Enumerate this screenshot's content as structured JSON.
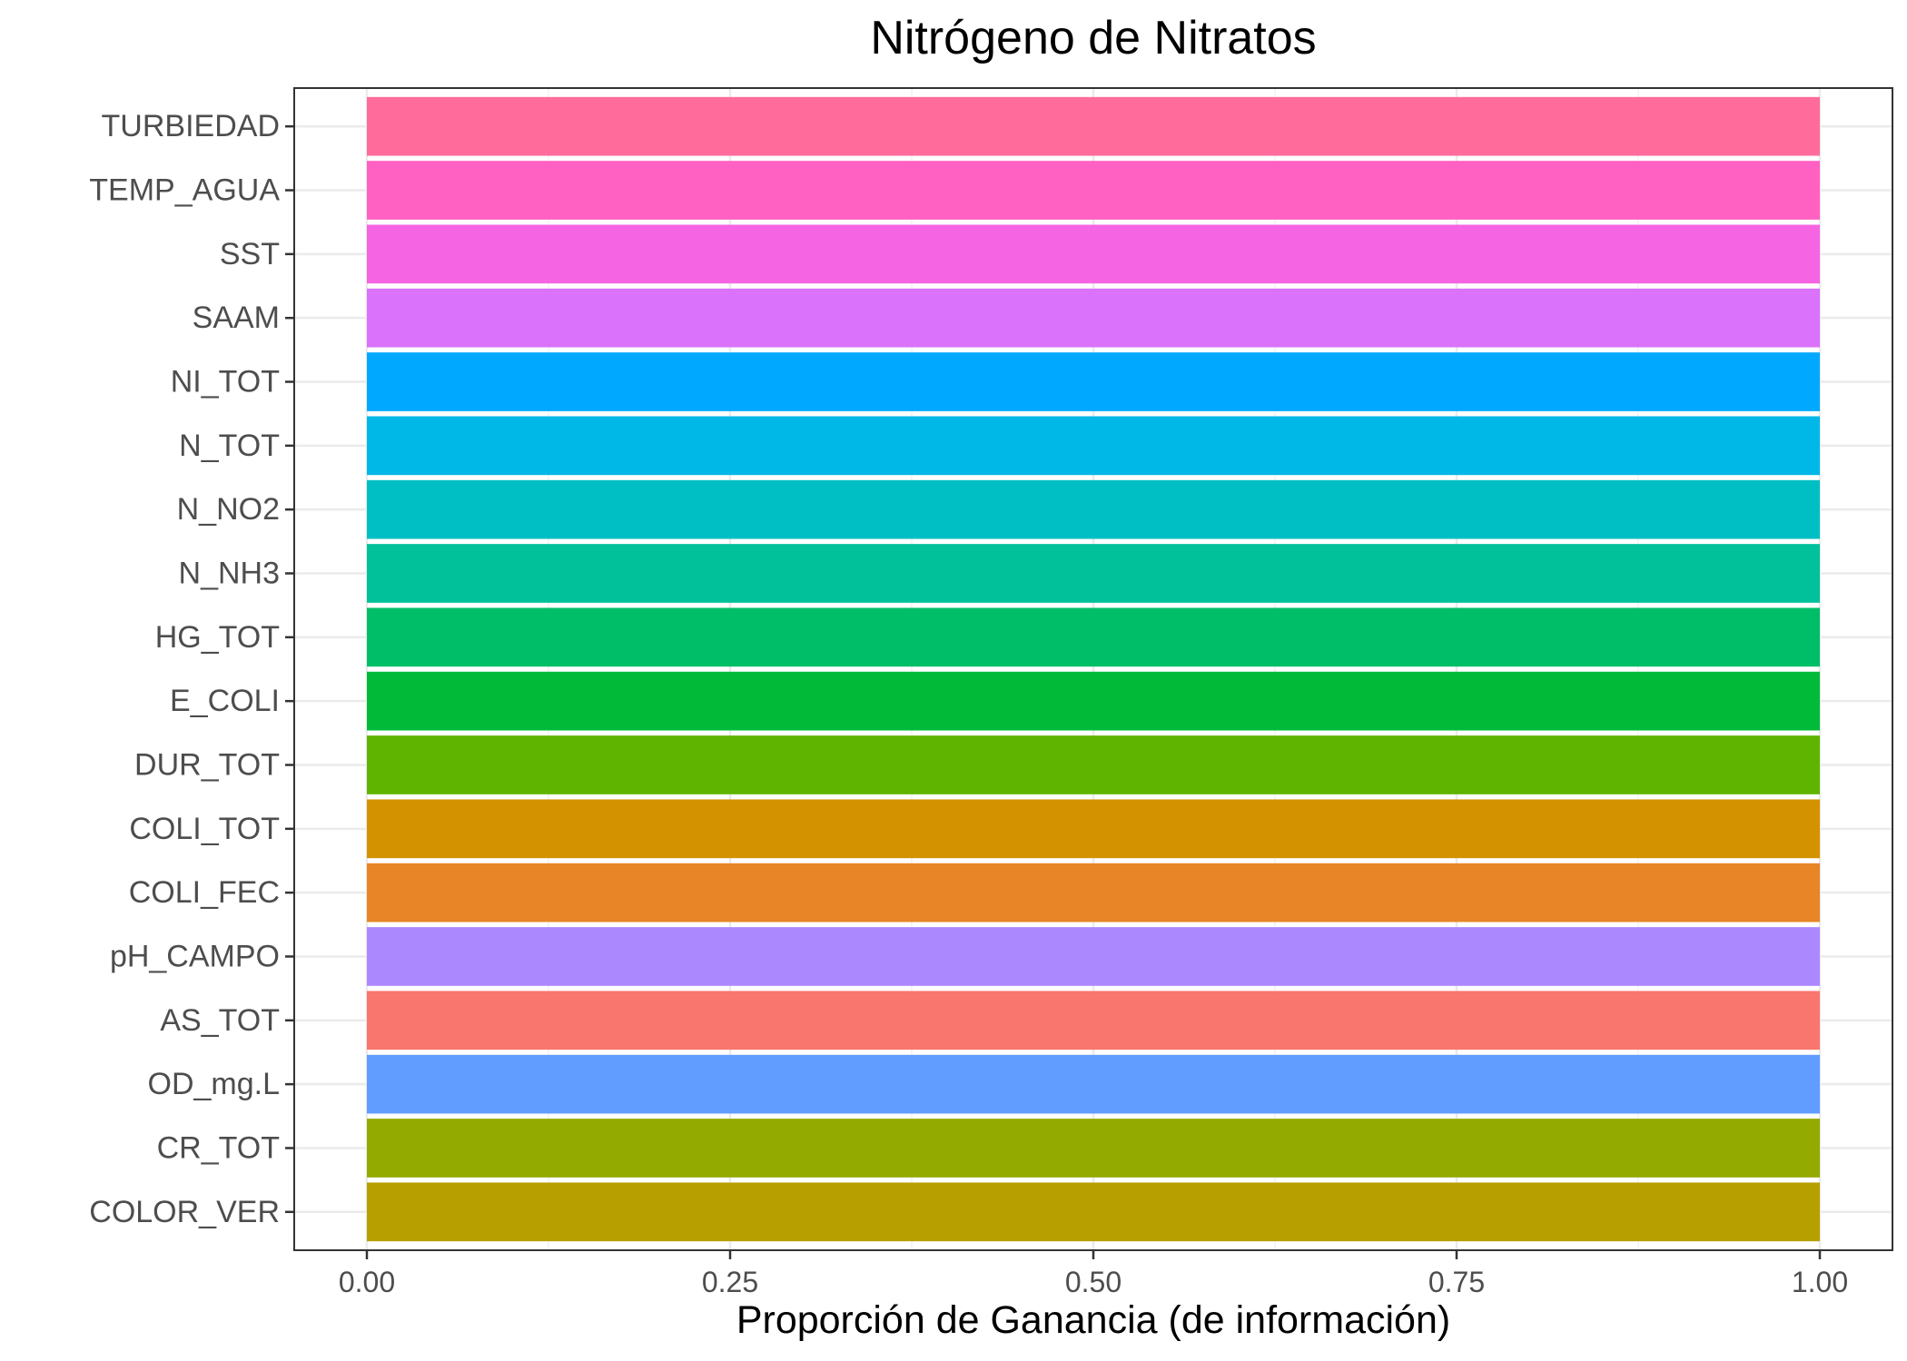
{
  "chart_data": {
    "type": "bar",
    "orientation": "horizontal",
    "title": "Nitrógeno de Nitratos",
    "xlabel": "Proporción de Ganancia (de información)",
    "ylabel": "",
    "xlim": [
      0,
      1
    ],
    "x_ticks": [
      "0.00",
      "0.25",
      "0.50",
      "0.75",
      "1.00"
    ],
    "grid": true,
    "legend": "none",
    "categories": [
      "TURBIEDAD",
      "TEMP_AGUA",
      "SST",
      "SAAM",
      "NI_TOT",
      "N_TOT",
      "N_NO2",
      "N_NH3",
      "HG_TOT",
      "E_COLI",
      "DUR_TOT",
      "COLI_TOT",
      "COLI_FEC",
      "pH_CAMPO",
      "AS_TOT",
      "OD_mg.L",
      "CR_TOT",
      "COLOR_VER"
    ],
    "values": [
      1,
      1,
      1,
      1,
      1,
      1,
      1,
      1,
      1,
      1,
      1,
      1,
      1,
      1,
      1,
      1,
      1,
      1
    ],
    "colors": [
      "#FF6C9C",
      "#FF61C3",
      "#F564E3",
      "#DB72FB",
      "#00A9FF",
      "#00B8E7",
      "#00BFC4",
      "#00C19A",
      "#00BE67",
      "#00BA38",
      "#5FB400",
      "#D39200",
      "#E88526",
      "#AC88FF",
      "#F8766D",
      "#619CFF",
      "#93AA00",
      "#B79F00"
    ]
  }
}
